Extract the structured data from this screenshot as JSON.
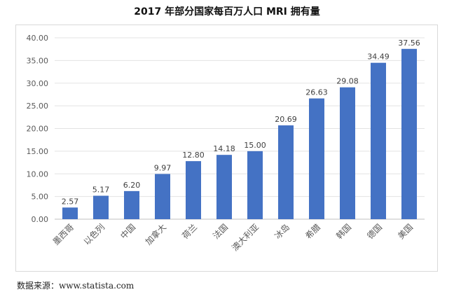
{
  "chart_data": {
    "type": "bar",
    "title": "2017 年部分国家每百万人口 MRI 拥有量",
    "categories": [
      "墨西哥",
      "以色列",
      "中国",
      "加拿大",
      "荷兰",
      "法国",
      "澳大利亚",
      "冰岛",
      "希腊",
      "韩国",
      "德国",
      "美国"
    ],
    "values": [
      2.57,
      5.17,
      6.2,
      9.97,
      12.8,
      14.18,
      15.0,
      20.69,
      26.63,
      29.08,
      34.49,
      37.56
    ],
    "value_labels": [
      "2.57",
      "5.17",
      "6.20",
      "9.97",
      "12.80",
      "14.18",
      "15.00",
      "20.69",
      "26.63",
      "29.08",
      "34.49",
      "37.56"
    ],
    "y_ticks": [
      "0.00",
      "5.00",
      "10.00",
      "15.00",
      "20.00",
      "25.00",
      "30.00",
      "35.00",
      "40.00"
    ],
    "ylim": [
      0,
      40
    ],
    "grid": "horizontal",
    "xlabel": "",
    "ylabel": "",
    "bar_color": "#4472c4"
  },
  "source": "数据来源：www.statista.com"
}
